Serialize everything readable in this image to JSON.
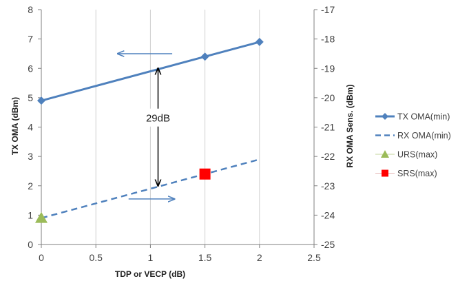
{
  "chart_data": {
    "type": "line",
    "xlabel": "TDP or VECP  (dB)",
    "ylabel_left": "TX OMA  (dBm)",
    "ylabel_right": "RX OMA Sens.  (dBm)",
    "xlim": [
      0,
      2.5
    ],
    "ylim_left": [
      0,
      8
    ],
    "ylim_right": [
      -25,
      -17
    ],
    "x_ticks": [
      "0",
      "0.5",
      "1",
      "1.5",
      "2",
      "2.5"
    ],
    "y_ticks_left": [
      "0",
      "1",
      "2",
      "3",
      "4",
      "5",
      "6",
      "7",
      "8"
    ],
    "y_ticks_right": [
      "-25",
      "-24",
      "-23",
      "-22",
      "-21",
      "-20",
      "-19",
      "-18",
      "-17"
    ],
    "grid": "vertical",
    "legend_position": "right",
    "series": [
      {
        "name": "TX OMA(min)",
        "axis": "left",
        "style": "solid-diamond",
        "color": "#4f81bd",
        "x": [
          0,
          1.5,
          2
        ],
        "y": [
          4.9,
          6.4,
          6.9
        ]
      },
      {
        "name": "RX OMA(min)",
        "axis": "right",
        "style": "dashed",
        "color": "#4f81bd",
        "x": [
          0,
          2
        ],
        "y": [
          -24.1,
          -22.1
        ]
      },
      {
        "name": "URS(max)",
        "axis": "right",
        "style": "triangle",
        "color": "#9bbb59",
        "x": [
          0
        ],
        "y": [
          -24.1
        ]
      },
      {
        "name": "SRS(max)",
        "axis": "right",
        "style": "square",
        "color": "#ff0000",
        "x": [
          1.5
        ],
        "y": [
          -22.6
        ]
      }
    ],
    "annotations": [
      {
        "type": "double-arrow",
        "x": 1.07,
        "y_from": 2.0,
        "y_to": 6.0
      },
      {
        "type": "text",
        "text": "29dB",
        "x": 1.07,
        "y": 4.3
      },
      {
        "type": "arrow",
        "direction": "left",
        "x_from": 1.2,
        "x_to": 0.7,
        "y": 6.5
      },
      {
        "type": "arrow",
        "direction": "right",
        "x_from": 0.8,
        "x_to": 1.22,
        "y": 1.55
      }
    ]
  }
}
